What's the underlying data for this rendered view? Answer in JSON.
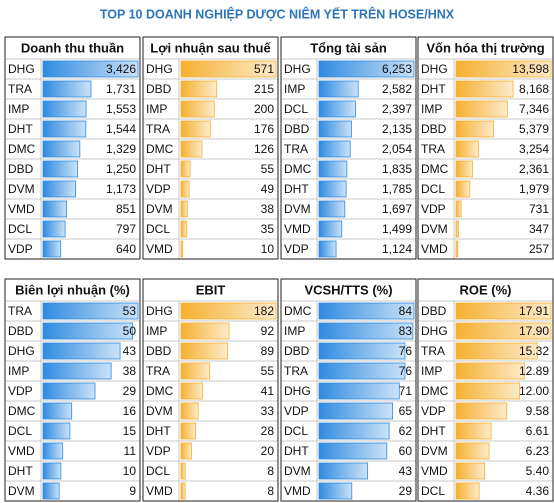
{
  "title": "TOP 10 DOANH NGHIỆP DƯỢC NIÊM YẾT TRÊN HOSE/HNX",
  "highlight": {
    "category": "DBD",
    "color": "#9c3a2c"
  },
  "chart_data": [
    {
      "type": "bar",
      "title": "Doanh thu thuần",
      "color": "#2f8be0",
      "categories": [
        "DHG",
        "TRA",
        "IMP",
        "DHT",
        "DMC",
        "DBD",
        "DVM",
        "VMD",
        "DCL",
        "VDP"
      ],
      "values": [
        3426,
        1731,
        1553,
        1544,
        1329,
        1250,
        1173,
        851,
        797,
        640
      ],
      "value_labels": [
        "3,426",
        "1,731",
        "1,553",
        "1,544",
        "1,329",
        "1,250",
        "1,173",
        "851",
        "797",
        "640"
      ]
    },
    {
      "type": "bar",
      "title": "Lợi nhuận sau thuế",
      "color": "#f5b030",
      "categories": [
        "DHG",
        "DBD",
        "IMP",
        "TRA",
        "DMC",
        "DHT",
        "VDP",
        "DVM",
        "DCL",
        "VMD"
      ],
      "values": [
        571,
        215,
        200,
        176,
        126,
        55,
        49,
        38,
        35,
        10
      ]
    },
    {
      "type": "bar",
      "title": "Tổng tài sản",
      "color": "#2f8be0",
      "categories": [
        "DHG",
        "IMP",
        "DCL",
        "DBD",
        "TRA",
        "DMC",
        "DHT",
        "DVM",
        "VMD",
        "VDP"
      ],
      "values": [
        6253,
        2582,
        2397,
        2135,
        2054,
        1835,
        1785,
        1697,
        1499,
        1124
      ],
      "value_labels": [
        "6,253",
        "2,582",
        "2,397",
        "2,135",
        "2,054",
        "1,835",
        "1,785",
        "1,697",
        "1,499",
        "1,124"
      ]
    },
    {
      "type": "bar",
      "title": "Vốn hóa thị trường",
      "color": "#f5b030",
      "categories": [
        "DHG",
        "DHT",
        "IMP",
        "DBD",
        "TRA",
        "DMC",
        "DCL",
        "VDP",
        "DVM",
        "VMD"
      ],
      "values": [
        13598,
        8168,
        7346,
        5379,
        3254,
        2361,
        1979,
        731,
        347,
        257
      ],
      "value_labels": [
        "13,598",
        "8,168",
        "7,346",
        "5,379",
        "3,254",
        "2,361",
        "1,979",
        "731",
        "347",
        "257"
      ]
    },
    {
      "type": "bar",
      "title": "Biên lợi nhuận (%)",
      "color": "#2f8be0",
      "categories": [
        "TRA",
        "DBD",
        "DHG",
        "IMP",
        "VDP",
        "DMC",
        "DCL",
        "VMD",
        "DHT",
        "DVM"
      ],
      "values": [
        53,
        50,
        43,
        38,
        29,
        16,
        15,
        11,
        10,
        9
      ]
    },
    {
      "type": "bar",
      "title": "EBIT",
      "color": "#f5b030",
      "categories": [
        "DHG",
        "IMP",
        "DBD",
        "TRA",
        "DMC",
        "DVM",
        "DHT",
        "VDP",
        "DCL",
        "VMD"
      ],
      "values": [
        182,
        92,
        89,
        55,
        41,
        33,
        28,
        20,
        8,
        8
      ]
    },
    {
      "type": "bar",
      "title": "VCSH/TTS (%)",
      "color": "#2f8be0",
      "categories": [
        "DMC",
        "IMP",
        "DBD",
        "TRA",
        "DHG",
        "VDP",
        "DCL",
        "DHT",
        "DVM",
        "VMD"
      ],
      "values": [
        84,
        83,
        76,
        76,
        71,
        65,
        62,
        60,
        43,
        29
      ]
    },
    {
      "type": "bar",
      "title": "ROE (%)",
      "color": "#f5b030",
      "categories": [
        "DBD",
        "DHG",
        "TRA",
        "IMP",
        "DMC",
        "VDP",
        "DHT",
        "DVM",
        "VMD",
        "DCL"
      ],
      "values": [
        17.91,
        17.9,
        15.32,
        12.89,
        12,
        9.58,
        6.61,
        6.23,
        5.4,
        4.36
      ],
      "value_labels": [
        "17.91",
        "17.90",
        "15.32",
        "12.89",
        "12.00",
        "9.58",
        "6.61",
        "6.23",
        "5.40",
        "4.36"
      ]
    }
  ]
}
